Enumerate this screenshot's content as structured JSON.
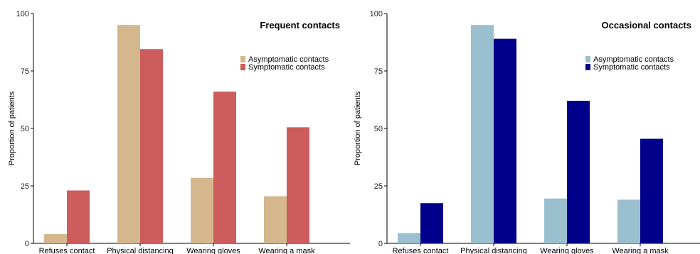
{
  "chart_data": [
    {
      "type": "bar",
      "title": "Frequent contacts",
      "xlabel": "",
      "ylabel": "Proportion of patients",
      "ylim": [
        0,
        100
      ],
      "yticks": [
        0,
        25,
        50,
        75,
        100
      ],
      "grid": false,
      "legend_position": "top-right",
      "categories": [
        "Refuses contact",
        "Physical distancing",
        "Wearing gloves",
        "Wearing a mask"
      ],
      "series": [
        {
          "name": "Asymptomatic contacts",
          "color": "#D4B78C",
          "values": [
            4,
            95,
            28.5,
            20.5
          ]
        },
        {
          "name": "Symptomatic contacts",
          "color": "#CD5C5C",
          "values": [
            23,
            84.5,
            66,
            50.5
          ]
        }
      ]
    },
    {
      "type": "bar",
      "title": "Occasional contacts",
      "xlabel": "",
      "ylabel": "Proportion of patients",
      "ylim": [
        0,
        100
      ],
      "yticks": [
        0,
        25,
        50,
        75,
        100
      ],
      "grid": false,
      "legend_position": "top-right",
      "categories": [
        "Refuses contact",
        "Physical distancing",
        "Wearing gloves",
        "Wearing a mask"
      ],
      "series": [
        {
          "name": "Asymptomatic contacts",
          "color": "#9ABFCE",
          "values": [
            4.5,
            95,
            19.5,
            19
          ]
        },
        {
          "name": "Symptomatic contacts",
          "color": "#00008B",
          "values": [
            17.5,
            89,
            62,
            45.5
          ]
        }
      ]
    }
  ]
}
